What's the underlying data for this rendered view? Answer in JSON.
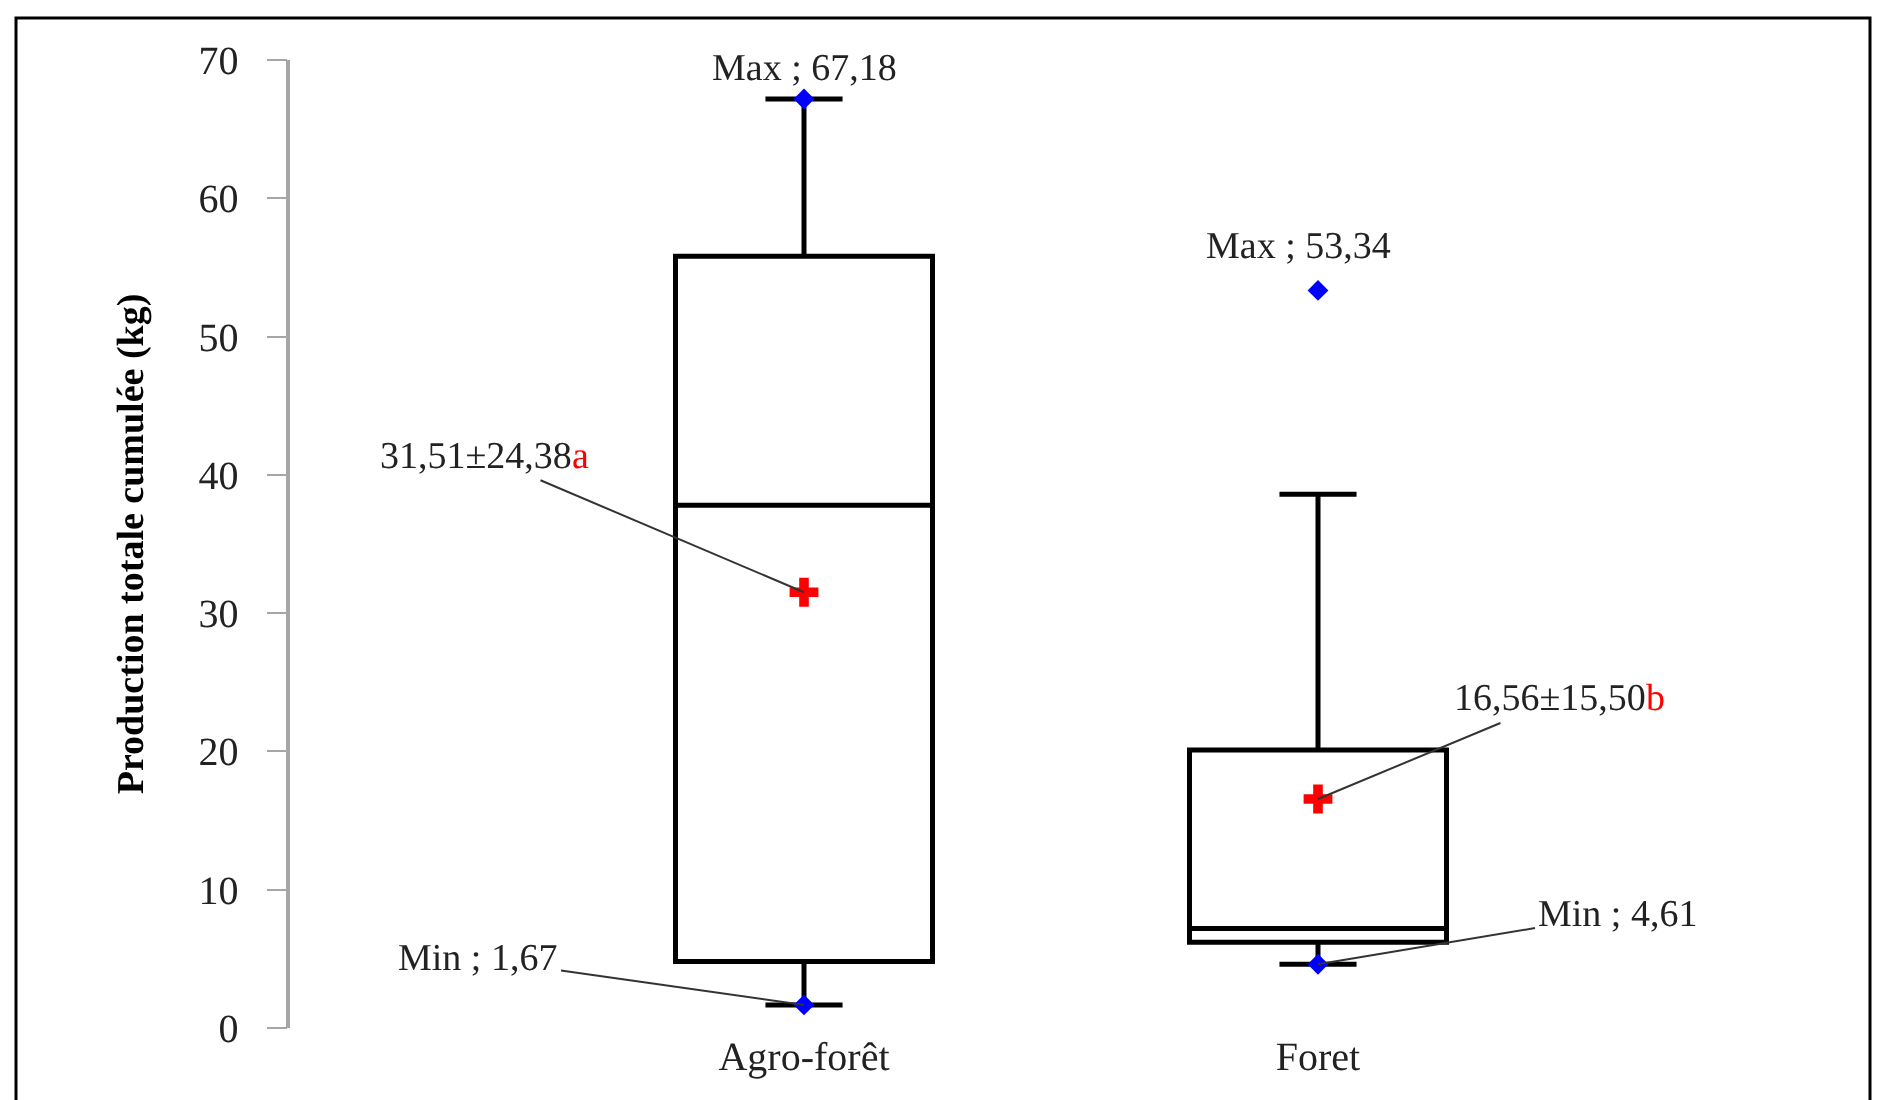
{
  "chart_data": {
    "type": "box",
    "ylabel": "Production totale cumulée (kg)",
    "categories": [
      "Agro-forêt",
      "Foret"
    ],
    "ylim": [
      0,
      70
    ],
    "yticks": [
      0,
      10,
      20,
      30,
      40,
      50,
      60,
      70
    ],
    "grid": false,
    "series": [
      {
        "type": "box",
        "color": "#000000",
        "boxes": [
          {
            "low": 1.67,
            "q1": 4.8,
            "median": 37.8,
            "q3": 55.8,
            "high": 67.18
          },
          {
            "low": 4.61,
            "q1": 6.2,
            "median": 7.2,
            "q3": 20.1,
            "high": 38.6
          }
        ]
      },
      {
        "type": "scatter",
        "color": "#0000ff",
        "marker": "diamond",
        "x": [
          "Agro-forêt",
          "Agro-forêt",
          "Foret",
          "Foret"
        ],
        "values": [
          67.18,
          1.67,
          53.34,
          4.61
        ]
      },
      {
        "type": "scatter",
        "color": "#ff0000",
        "marker": "cross",
        "x": [
          "Agro-forêt",
          "Foret"
        ],
        "values": [
          31.51,
          16.56
        ]
      }
    ],
    "annotations": [
      {
        "text": "Max ; 67,18",
        "x": "Agro-forêt",
        "y": 67.18
      },
      {
        "text": "Max ; 53,34",
        "x": "Foret",
        "y": 53.34
      },
      {
        "text": "31,51±24,38a",
        "x": "Agro-forêt",
        "y": 31.51
      },
      {
        "text": "16,56±15,50b",
        "x": "Foret",
        "y": 16.56
      },
      {
        "text": "Min ; 1,67",
        "x": "Agro-forêt",
        "y": 1.67
      },
      {
        "text": "Min ; 4,61",
        "x": "Foret",
        "y": 4.61
      }
    ]
  }
}
